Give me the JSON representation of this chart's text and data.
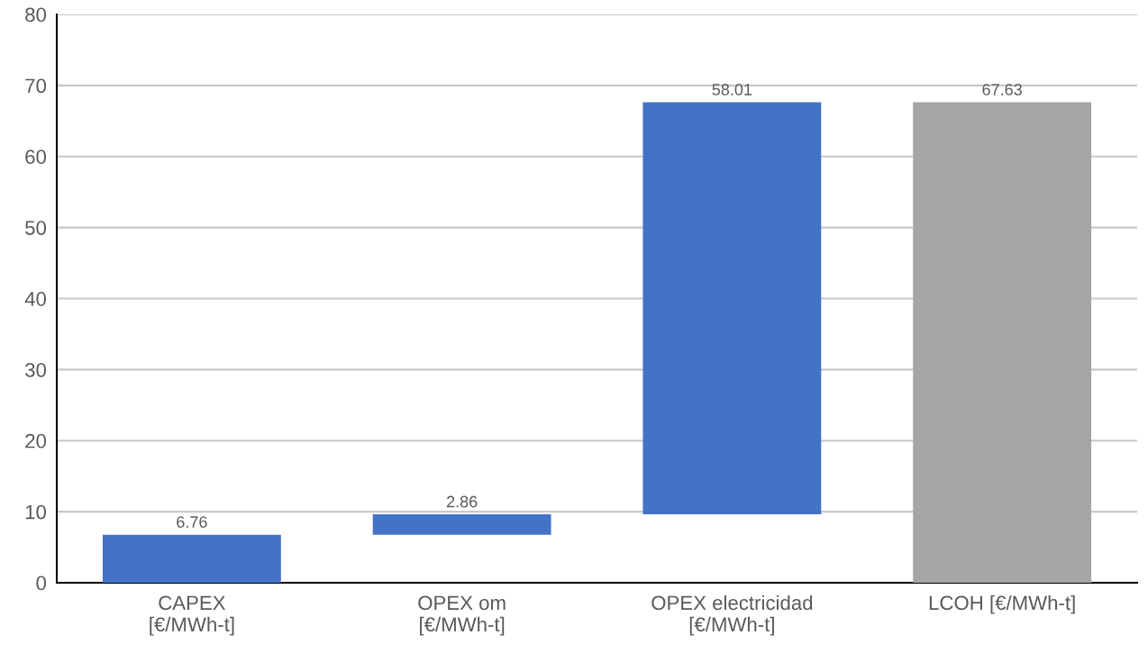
{
  "chart_data": {
    "type": "bar",
    "categories": [
      "CAPEX\n[€/MWh-t]",
      "OPEX om\n[€/MWh-t]",
      "OPEX electricidad\n[€/MWh-t]",
      "LCOH [€/MWh-t]"
    ],
    "values": [
      6.76,
      2.86,
      58.01,
      67.63
    ],
    "base": [
      0,
      6.76,
      9.62,
      0
    ],
    "colors": [
      "#4472c4",
      "#4472c4",
      "#4472c4",
      "#a5a5a5"
    ],
    "ylim": [
      0,
      80
    ],
    "yticks": [
      0,
      10,
      20,
      30,
      40,
      50,
      60,
      70,
      80
    ],
    "grid": "y",
    "data_labels": true,
    "legend": false
  }
}
